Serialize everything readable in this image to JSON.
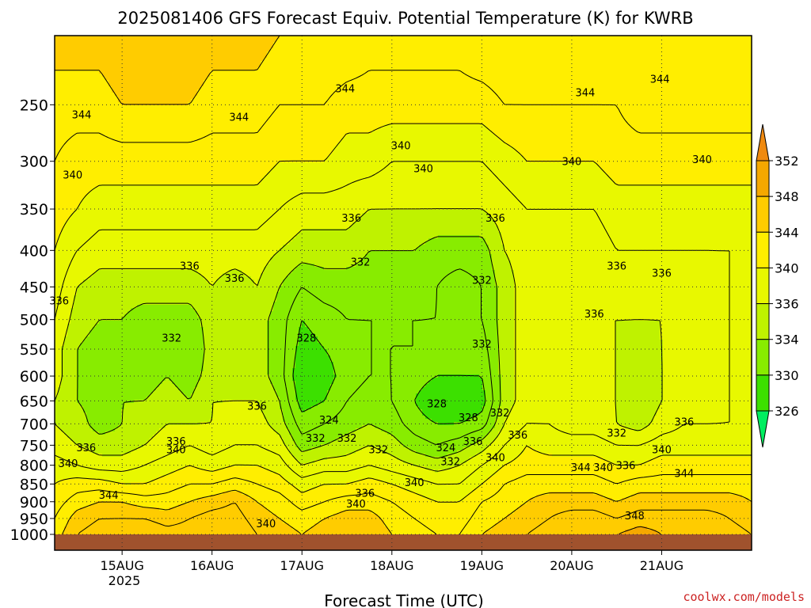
{
  "chart_data": {
    "type": "heatmap",
    "title": "2025081406 GFS Forecast Equiv. Potential Temperature (K) for KWRB",
    "xlabel": "Forecast Time (UTC)",
    "ylabel": "",
    "credit": "coolwx.com/models",
    "x_unit": "days since 2025-08-14 06Z",
    "xlim": [
      0,
      7.75
    ],
    "ylim": [
      1000,
      200
    ],
    "y_scale": "log-pressure",
    "x_ticks": [
      {
        "x": 0.75,
        "label": "15AUG"
      },
      {
        "x": 1.75,
        "label": "16AUG"
      },
      {
        "x": 2.75,
        "label": "17AUG"
      },
      {
        "x": 3.75,
        "label": "18AUG"
      },
      {
        "x": 4.75,
        "label": "19AUG"
      },
      {
        "x": 5.75,
        "label": "20AUG"
      },
      {
        "x": 6.75,
        "label": "21AUG"
      }
    ],
    "year_label": "2025",
    "y_ticks": [
      1000,
      950,
      900,
      850,
      800,
      750,
      700,
      650,
      600,
      550,
      500,
      450,
      400,
      350,
      300,
      250
    ],
    "grid": "dotted",
    "colorbar": {
      "position": "right",
      "labels": [
        326,
        330,
        334,
        336,
        340,
        344,
        348,
        352
      ],
      "colors": [
        "#00ee60",
        "#3ce000",
        "#88ec00",
        "#bff200",
        "#e8f800",
        "#ffee00",
        "#ffcc00",
        "#f5a800",
        "#f08a10"
      ]
    },
    "ground_color": "#a0522d",
    "x_profiles": [
      0,
      0.25,
      0.5,
      0.75,
      1.0,
      1.25,
      1.5,
      1.75,
      2.0,
      2.25,
      2.5,
      2.75,
      3.0,
      3.25,
      3.5,
      3.75,
      4.0,
      4.25,
      4.5,
      4.75,
      5.0,
      5.25,
      5.5,
      5.75,
      6.0,
      6.25,
      6.5,
      6.75,
      7.0,
      7.25,
      7.5,
      7.75
    ],
    "p_levels": [
      1000,
      950,
      900,
      850,
      800,
      750,
      700,
      650,
      600,
      550,
      500,
      450,
      400,
      350,
      300,
      250,
      200
    ],
    "columns": [
      [
        343,
        342,
        341,
        340,
        339,
        337,
        336,
        336,
        337,
        337,
        338,
        339,
        340,
        341,
        342,
        343,
        345
      ],
      [
        346,
        345,
        343,
        341,
        338,
        336,
        335,
        334,
        334,
        334,
        335,
        336,
        338,
        340,
        341,
        343,
        345
      ],
      [
        347,
        346,
        344,
        341,
        337,
        335,
        333,
        333,
        333,
        333,
        334,
        335,
        337,
        339,
        341,
        343,
        345
      ],
      [
        348,
        346,
        344,
        340,
        337,
        335,
        334,
        334,
        333,
        333,
        334,
        335,
        337,
        339,
        341,
        344,
        346
      ],
      [
        348,
        346,
        343,
        340,
        338,
        336,
        335,
        334,
        333,
        332,
        333,
        335,
        337,
        339,
        341,
        344,
        346
      ],
      [
        347,
        345,
        343,
        341,
        339,
        337,
        336,
        335,
        334,
        333,
        333,
        335,
        337,
        339,
        341,
        344,
        346
      ],
      [
        347,
        346,
        344,
        342,
        340,
        338,
        336,
        334,
        333,
        332,
        333,
        335,
        337,
        339,
        341,
        344,
        346
      ],
      [
        348,
        347,
        345,
        342,
        339,
        337,
        336,
        336,
        335,
        335,
        335,
        336,
        337,
        339,
        341,
        343,
        345
      ],
      [
        348,
        347,
        346,
        343,
        340,
        338,
        337,
        336,
        335,
        334,
        334,
        335,
        337,
        339,
        341,
        343,
        345
      ],
      [
        346,
        345,
        344,
        342,
        340,
        338,
        337,
        336,
        335,
        335,
        335,
        336,
        337,
        339,
        341,
        343,
        345
      ],
      [
        345,
        344,
        343,
        341,
        339,
        337,
        335,
        334,
        333,
        333,
        333,
        334,
        336,
        338,
        340,
        342,
        344
      ],
      [
        344,
        343,
        341,
        339,
        336,
        333,
        331,
        329,
        328,
        329,
        330,
        332,
        335,
        337,
        340,
        342,
        344
      ],
      [
        345,
        344,
        342,
        340,
        337,
        334,
        332,
        330,
        329,
        330,
        331,
        333,
        335,
        337,
        340,
        342,
        344
      ],
      [
        346,
        345,
        343,
        340,
        337,
        335,
        333,
        332,
        331,
        331,
        332,
        333,
        335,
        337,
        339,
        341,
        344
      ],
      [
        346,
        345,
        343,
        341,
        338,
        336,
        334,
        333,
        332,
        332,
        332,
        333,
        334,
        336,
        339,
        341,
        343
      ],
      [
        344,
        343,
        342,
        340,
        337,
        335,
        333,
        332,
        332,
        332,
        332,
        333,
        334,
        336,
        338,
        341,
        343
      ],
      [
        343,
        342,
        341,
        339,
        336,
        333,
        331,
        330,
        331,
        332,
        332,
        333,
        334,
        336,
        338,
        341,
        343
      ],
      [
        342,
        341,
        340,
        338,
        335,
        332,
        330,
        328,
        330,
        331,
        332,
        332,
        333,
        336,
        338,
        341,
        343
      ],
      [
        342,
        341,
        340,
        338,
        336,
        333,
        330,
        328,
        330,
        331,
        331,
        331,
        333,
        336,
        338,
        341,
        343
      ],
      [
        344,
        343,
        342,
        340,
        338,
        335,
        331,
        329,
        330,
        331,
        332,
        332,
        333,
        336,
        338,
        341,
        344
      ],
      [
        345,
        344,
        343,
        342,
        340,
        338,
        336,
        335,
        335,
        335,
        335,
        335,
        336,
        337,
        339,
        342,
        344
      ],
      [
        346,
        345,
        344,
        343,
        341,
        340,
        338,
        337,
        337,
        337,
        337,
        337,
        337,
        338,
        340,
        342,
        344
      ],
      [
        347,
        346,
        345,
        343,
        341,
        339,
        338,
        337,
        337,
        337,
        337,
        337,
        337,
        338,
        340,
        342,
        344
      ],
      [
        348,
        347,
        345,
        343,
        341,
        339,
        337,
        336,
        336,
        336,
        336,
        336,
        337,
        338,
        340,
        342,
        344
      ],
      [
        348,
        347,
        345,
        343,
        341,
        339,
        337,
        336,
        336,
        336,
        336,
        336,
        337,
        338,
        340,
        342,
        344
      ],
      [
        348,
        346,
        344,
        342,
        340,
        338,
        336,
        336,
        336,
        336,
        336,
        337,
        338,
        339,
        341,
        342,
        344
      ],
      [
        349,
        347,
        345,
        343,
        340,
        338,
        335,
        334,
        334,
        335,
        336,
        337,
        338,
        339,
        341,
        343,
        344
      ],
      [
        348,
        347,
        345,
        343,
        341,
        339,
        337,
        336,
        336,
        336,
        336,
        337,
        338,
        339,
        341,
        343,
        344
      ],
      [
        348,
        347,
        345,
        343,
        341,
        339,
        338,
        337,
        337,
        337,
        337,
        337,
        338,
        339,
        341,
        343,
        344
      ],
      [
        348,
        347,
        345,
        343,
        341,
        339,
        338,
        337,
        337,
        337,
        337,
        337,
        338,
        339,
        341,
        343,
        344
      ],
      [
        347,
        346,
        345,
        343,
        341,
        339,
        338,
        338,
        338,
        338,
        338,
        338,
        338,
        339,
        341,
        343,
        344
      ],
      [
        346,
        345,
        344,
        343,
        341,
        339,
        338,
        338,
        338,
        338,
        338,
        338,
        338,
        339,
        341,
        343,
        344
      ]
    ],
    "contour_labels": [
      {
        "x": 3.23,
        "p": 237,
        "text": "344"
      },
      {
        "x": 5.9,
        "p": 240,
        "text": "344"
      },
      {
        "x": 6.73,
        "p": 230,
        "text": "344"
      },
      {
        "x": 0.3,
        "p": 258,
        "text": "344"
      },
      {
        "x": 2.05,
        "p": 260,
        "text": "344"
      },
      {
        "x": 3.85,
        "p": 285,
        "text": "340"
      },
      {
        "x": 4.1,
        "p": 307,
        "text": "340"
      },
      {
        "x": 5.75,
        "p": 300,
        "text": "340"
      },
      {
        "x": 7.2,
        "p": 298,
        "text": "340"
      },
      {
        "x": 0.2,
        "p": 313,
        "text": "340"
      },
      {
        "x": 3.3,
        "p": 360,
        "text": "336"
      },
      {
        "x": 4.9,
        "p": 360,
        "text": "336"
      },
      {
        "x": 1.5,
        "p": 420,
        "text": "336"
      },
      {
        "x": 2.0,
        "p": 437,
        "text": "336"
      },
      {
        "x": 3.4,
        "p": 415,
        "text": "332"
      },
      {
        "x": 4.75,
        "p": 440,
        "text": "332"
      },
      {
        "x": 6.25,
        "p": 420,
        "text": "336"
      },
      {
        "x": 6.75,
        "p": 430,
        "text": "336"
      },
      {
        "x": 0.05,
        "p": 470,
        "text": "336"
      },
      {
        "x": 1.3,
        "p": 530,
        "text": "332"
      },
      {
        "x": 2.8,
        "p": 530,
        "text": "328"
      },
      {
        "x": 4.75,
        "p": 540,
        "text": "332"
      },
      {
        "x": 6.0,
        "p": 490,
        "text": "336"
      },
      {
        "x": 2.25,
        "p": 660,
        "text": "336"
      },
      {
        "x": 3.05,
        "p": 690,
        "text": "324"
      },
      {
        "x": 4.25,
        "p": 655,
        "text": "328"
      },
      {
        "x": 4.6,
        "p": 685,
        "text": "328"
      },
      {
        "x": 4.95,
        "p": 675,
        "text": "332"
      },
      {
        "x": 6.25,
        "p": 720,
        "text": "332"
      },
      {
        "x": 7.0,
        "p": 695,
        "text": "336"
      },
      {
        "x": 2.9,
        "p": 732,
        "text": "332"
      },
      {
        "x": 3.25,
        "p": 732,
        "text": "332"
      },
      {
        "x": 3.6,
        "p": 760,
        "text": "332"
      },
      {
        "x": 4.35,
        "p": 755,
        "text": "324"
      },
      {
        "x": 4.65,
        "p": 740,
        "text": "336"
      },
      {
        "x": 5.15,
        "p": 725,
        "text": "336"
      },
      {
        "x": 0.35,
        "p": 755,
        "text": "336"
      },
      {
        "x": 1.35,
        "p": 740,
        "text": "336"
      },
      {
        "x": 1.35,
        "p": 760,
        "text": "340"
      },
      {
        "x": 0.15,
        "p": 795,
        "text": "340"
      },
      {
        "x": 4.4,
        "p": 790,
        "text": "332"
      },
      {
        "x": 4.9,
        "p": 780,
        "text": "340"
      },
      {
        "x": 6.75,
        "p": 760,
        "text": "340"
      },
      {
        "x": 5.85,
        "p": 805,
        "text": "344"
      },
      {
        "x": 6.1,
        "p": 805,
        "text": "340"
      },
      {
        "x": 6.35,
        "p": 800,
        "text": "336"
      },
      {
        "x": 7.0,
        "p": 820,
        "text": "344"
      },
      {
        "x": 4.0,
        "p": 845,
        "text": "340"
      },
      {
        "x": 3.45,
        "p": 875,
        "text": "336"
      },
      {
        "x": 3.35,
        "p": 905,
        "text": "340"
      },
      {
        "x": 0.6,
        "p": 880,
        "text": "344"
      },
      {
        "x": 2.35,
        "p": 965,
        "text": "340"
      },
      {
        "x": 6.45,
        "p": 940,
        "text": "348"
      }
    ]
  }
}
